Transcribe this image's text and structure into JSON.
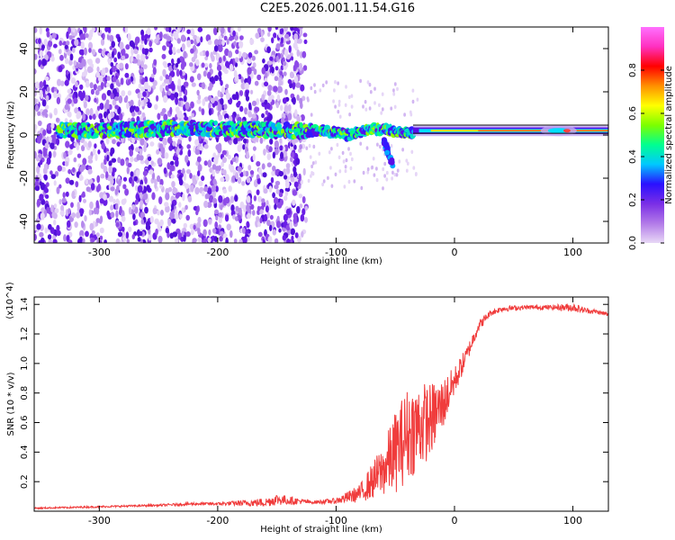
{
  "title": "C2E5.2026.001.11.54.G16",
  "chart_data": [
    {
      "type": "heatmap",
      "xlabel": "Height of straight line (km)",
      "ylabel": "Frequency (Hz)",
      "xlim": [
        -355,
        130
      ],
      "ylim": [
        -50,
        50
      ],
      "xticks": [
        -300,
        -200,
        -100,
        0,
        100
      ],
      "yticks": [
        -40,
        -20,
        0,
        20,
        40
      ],
      "colorbar": {
        "label": "Normalized spectral amplitude",
        "range": [
          0,
          1
        ],
        "ticks": [
          0.0,
          0.2,
          0.4,
          0.6,
          0.8
        ],
        "colors": [
          "#e8d8f6",
          "#b27ae8",
          "#7a2ee6",
          "#2a10ff",
          "#00c8ff",
          "#00ff90",
          "#7cff00",
          "#ffff00",
          "#ff9000",
          "#ff0000",
          "#ff30c0",
          "#ff70ff"
        ]
      },
      "ridge": [
        {
          "x": -330,
          "y": 2
        },
        {
          "x": -300,
          "y": 2
        },
        {
          "x": -250,
          "y": 3
        },
        {
          "x": -200,
          "y": 3
        },
        {
          "x": -150,
          "y": 2
        },
        {
          "x": -110,
          "y": 2
        },
        {
          "x": -90,
          "y": 0
        },
        {
          "x": -70,
          "y": 3
        },
        {
          "x": -55,
          "y": 2
        },
        {
          "x": -45,
          "y": 1
        },
        {
          "x": -30,
          "y": 1
        },
        {
          "x": 0,
          "y": 2
        },
        {
          "x": 50,
          "y": 2
        },
        {
          "x": 100,
          "y": 2
        },
        {
          "x": 130,
          "y": 2
        }
      ],
      "branch": [
        {
          "x": -60,
          "y": -2
        },
        {
          "x": -55,
          "y": -8
        },
        {
          "x": -52,
          "y": -14
        }
      ],
      "line_y": 2
    },
    {
      "type": "line",
      "xlabel": "Height of straight line (km)",
      "ylabel": "SNR (10 * v/v)",
      "y_multiplier": "(x10^4)",
      "xlim": [
        -355,
        130
      ],
      "ylim": [
        0,
        1.45
      ],
      "xticks": [
        -300,
        -200,
        -100,
        0,
        100
      ],
      "yticks": [
        0.2,
        0.4,
        0.6,
        0.8,
        1.0,
        1.2,
        1.4
      ],
      "color": "#f03c3c",
      "x": [
        -355,
        -300,
        -250,
        -220,
        -200,
        -160,
        -150,
        -120,
        -100,
        -80,
        -70,
        -60,
        -50,
        -40,
        -30,
        -20,
        -10,
        0,
        10,
        20,
        30,
        40,
        60,
        80,
        100,
        110,
        120,
        130
      ],
      "y": [
        0.02,
        0.03,
        0.04,
        0.05,
        0.05,
        0.06,
        0.08,
        0.06,
        0.07,
        0.12,
        0.2,
        0.28,
        0.4,
        0.52,
        0.58,
        0.62,
        0.72,
        0.88,
        1.05,
        1.25,
        1.34,
        1.37,
        1.38,
        1.38,
        1.38,
        1.36,
        1.35,
        1.33
      ],
      "noise": [
        0.005,
        0.006,
        0.007,
        0.01,
        0.01,
        0.03,
        0.04,
        0.01,
        0.02,
        0.06,
        0.12,
        0.18,
        0.28,
        0.32,
        0.3,
        0.25,
        0.18,
        0.1,
        0.06,
        0.04,
        0.02,
        0.02,
        0.015,
        0.015,
        0.03,
        0.02,
        0.015,
        0.015
      ]
    }
  ]
}
